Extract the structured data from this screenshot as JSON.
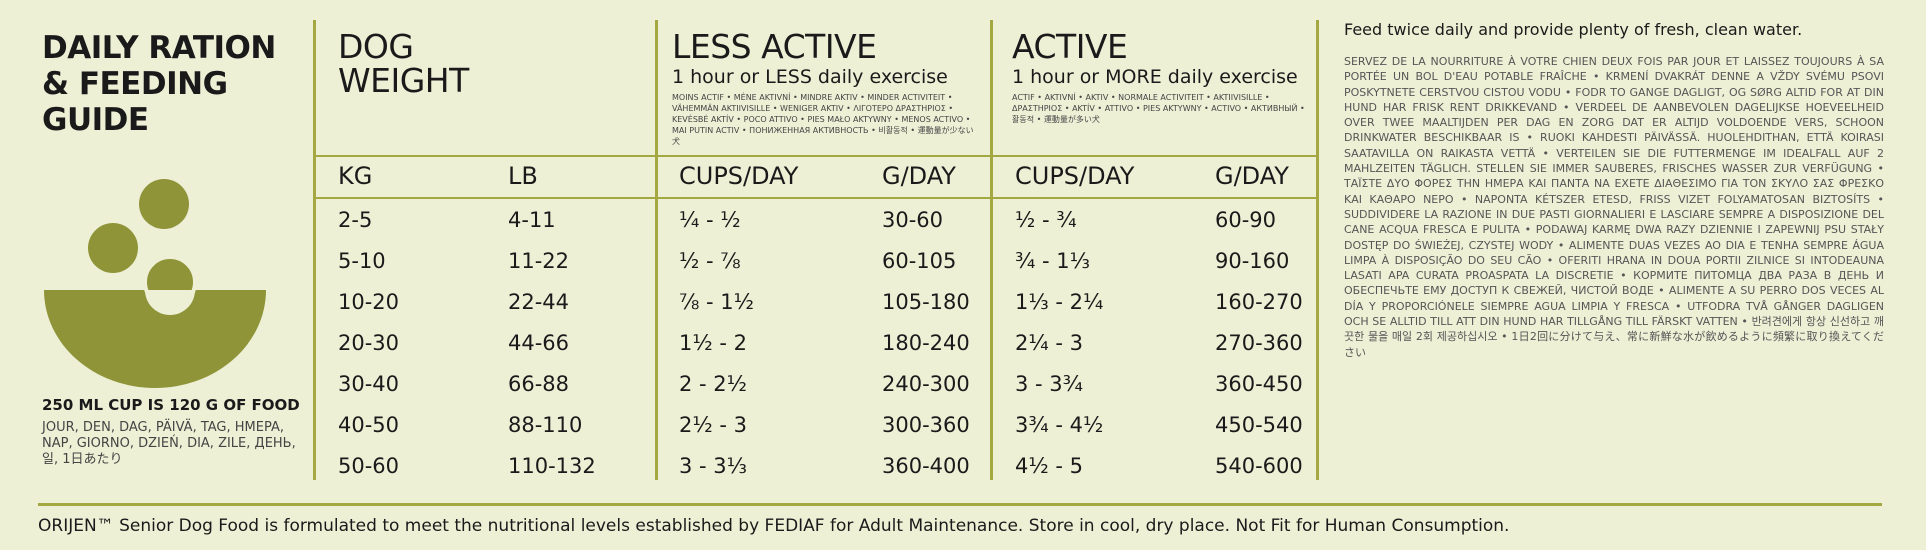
{
  "title": "DAILY RATION & FEEDING GUIDE",
  "cup_caption": "250 ML CUP IS 120 G OF FOOD",
  "cup_multilingual": "JOUR, DEN, DAG, PÄIVÄ, TAG, HMEPA, NAP, GIORNO, DZIEŃ, DIA, ZILE, ДЕНЬ, 일, 1日あたり",
  "dog_weight": {
    "heading": "DOG WEIGHT",
    "col_kg": "KG",
    "col_lb": "LB"
  },
  "less_active": {
    "heading": "LESS ACTIVE",
    "subheading": "1 hour or LESS daily exercise",
    "multilingual": "MOINS ACTIF • MÉNE AKTIVNÍ • MINDRE AKTIV • MINDER ACTIVITEIT • VÄHEMMÄN AKTIIVISILLE • WENIGER AKTIV • ΛΙΓΟΤΕΡΟ ΔΡΑΣΤΗΡΙΟΣ • KEVÉSBÉ AKTÍV • POCO ATTIVO • PIES MAŁO AKTYWNY • MENOS ACTIVO • MAI PUTIN ACTIV • ПОНИЖЕННАЯ АКТИВНОСТЬ • 비활동적 • 運動量が少ない犬",
    "col_cups": "CUPS/DAY",
    "col_g": "G/DAY"
  },
  "active": {
    "heading": "ACTIVE",
    "subheading": "1 hour or MORE daily exercise",
    "multilingual": "ACTIF • AKTIVNÍ • AKTIV • NORMALE ACTIVITEIT • AKTIIVISILLE • ΔΡΑΣΤΗΡΙΟΣ • AKTÍV • ATTIVO • PIES AKTYWNY • ACTIVO • АКТИВНЫЙ • 활동적 • 運動量が多い犬",
    "col_cups": "CUPS/DAY",
    "col_g": "G/DAY"
  },
  "rows": [
    {
      "kg": "2-5",
      "lb": "4-11",
      "less_cups": "¼ - ½",
      "less_g": "30-60",
      "active_cups": "½ - ¾",
      "active_g": "60-90"
    },
    {
      "kg": "5-10",
      "lb": "11-22",
      "less_cups": "½ - ⅞",
      "less_g": "60-105",
      "active_cups": "¾ - 1⅓",
      "active_g": "90-160"
    },
    {
      "kg": "10-20",
      "lb": "22-44",
      "less_cups": "⅞ - 1½",
      "less_g": "105-180",
      "active_cups": "1⅓ - 2¼",
      "active_g": "160-270"
    },
    {
      "kg": "20-30",
      "lb": "44-66",
      "less_cups": "1½ - 2",
      "less_g": "180-240",
      "active_cups": "2¼ - 3",
      "active_g": "270-360"
    },
    {
      "kg": "30-40",
      "lb": "66-88",
      "less_cups": "2 - 2½",
      "less_g": "240-300",
      "active_cups": "3 - 3¾",
      "active_g": "360-450"
    },
    {
      "kg": "40-50",
      "lb": "88-110",
      "less_cups": "2½ - 3",
      "less_g": "300-360",
      "active_cups": "3¾ - 4½",
      "active_g": "450-540"
    },
    {
      "kg": "50-60",
      "lb": "110-132",
      "less_cups": "3 - 3⅓",
      "less_g": "360-400",
      "active_cups": "4½ - 5",
      "active_g": "540-600"
    }
  ],
  "instructions": {
    "main": "Feed twice daily and provide plenty of fresh, clean water.",
    "multilingual": "SERVEZ DE LA NOURRITURE À VOTRE CHIEN DEUX FOIS PAR JOUR ET LAISSEZ TOUJOURS À SA PORTÉE UN BOL D'EAU POTABLE FRAÎCHE • KRMENÍ DVAKRÁT DENNE A VŽDY SVÉMU PSOVI POSKYTNETE CERSTVOU CISTOU VODU • FODR TO GANGE DAGLIGT, OG SØRG ALTID FOR AT DIN HUND HAR FRISK RENT DRIKKEVAND • VERDEEL DE AANBEVOLEN DAGELIJKSE HOEVEELHEID OVER TWEE MAALTIJDEN PER DAG EN ZORG DAT ER ALTIJD VOLDOENDE VERS, SCHOON DRINKWATER BESCHIKBAAR IS • RUOKI KAHDESTI PÄIVÄSSÄ. HUOLEHDITHAN, ETTÄ KOIRASI SAATAVILLA ON RAIKASTA VETTÄ • VERTEILEN SIE DIE FUTTERMENGE IM IDEALFALL AUF 2 MAHLZEITEN TÄGLICH. STELLEN SIE IMMER SAUBERES, FRISCHES WASSER ZUR VERFÜGUNG • ΤΑΪΣΤΕ ΔΥΟ ΦΟΡΕΣ ΤΗΝ ΗΜΕΡΑ ΚΑΙ ΠΑΝΤΑ ΝΑ ΕΧΕΤΕ ΔΙΑΘΕΣΙΜΟ ΓΙΑ ΤΟΝ ΣΚΥΛΟ ΣΑΣ ΦΡΕΣΚΟ ΚΑΙ ΚΑΘΑΡΟ ΝΕΡΟ • NAPONTA KÉTSZER ETESD, FRISS VIZET FOLYAMATOSAN BIZTOSÍTS • SUDDIVIDERE LA RAZIONE IN DUE PASTI GIORNALIERI E LASCIARE SEMPRE A DISPOSIZIONE DEL CANE ACQUA FRESCA E PULITA • PODAWAJ KARMĘ DWA RAZY DZIENNIE I ZAPEWNIJ PSU STAŁY DOSTĘP DO ŚWIEŻEJ, CZYSTEJ WODY • ALIMENTE DUAS VEZES AO DIA E TENHA SEMPRE ÁGUA LIMPA À DISPOSIÇÃO DO SEU CÃO • OFERITI HRANA IN DOUA PORTII ZILNICE SI INTODEAUNA LASATI APA CURATA PROASPATA LA DISCRETIE • КОРМИТЕ ПИТОМЦА ДВА РАЗА В ДЕНЬ И ОБЕСПЕЧЬТЕ ЕМУ ДОСТУП К СВЕЖЕЙ, ЧИСТОЙ ВОДЕ • ALIMENTE A SU PERRO DOS VECES AL DÍA Y PROPORCIÓNELE SIEMPRE AGUA LIMPIA Y FRESCA • UTFODRA TVÅ GÅNGER DAGLIGEN OCH SE ALLTID TILL ATT DIN HUND HAR TILLGÅNG TILL FÄRSKT VATTEN • 반려견에게 항상 신선하고 깨끗한 물을 매일 2회 제공하십시오 • 1日2回に分けて与え、常に新鮮な水が飲めるように頻繁に取り換えてください"
  },
  "footer": "ORIJEN™ Senior Dog Food is formulated to meet the nutritional levels established by FEDIAF for Adult Maintenance. Store in cool, dry place. Not Fit for Human Consumption.",
  "colors": {
    "background": "#eef0d6",
    "accent": "#a3a843",
    "text": "#1a1a1a"
  },
  "icons": [
    "food-bowl-icon"
  ]
}
